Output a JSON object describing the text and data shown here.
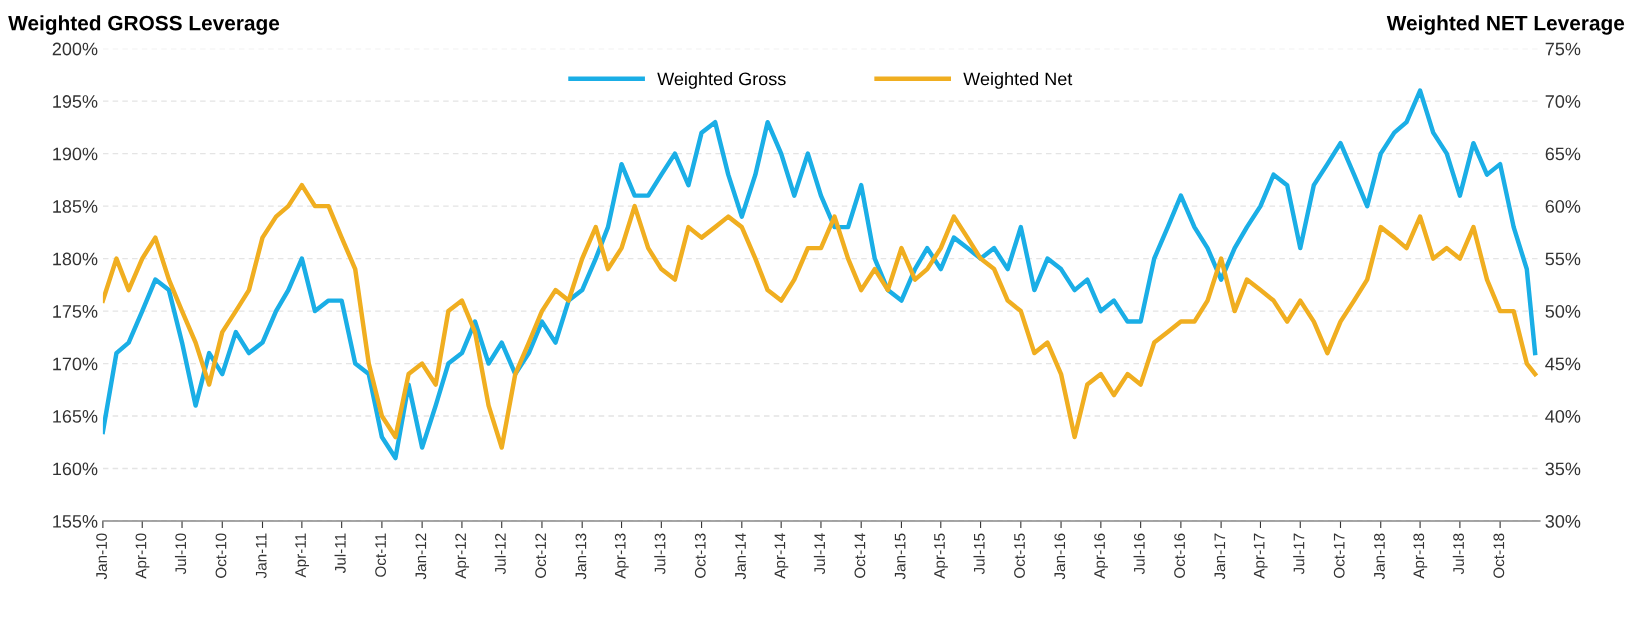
{
  "chart_data": {
    "type": "line",
    "ylabel": "Weighted GROSS Leverage",
    "y2label": "Weighted NET Leverage",
    "x": [
      "2010-01",
      "2010-02",
      "2010-03",
      "2010-04",
      "2010-05",
      "2010-06",
      "2010-07",
      "2010-08",
      "2010-09",
      "2010-10",
      "2010-11",
      "2010-12",
      "2011-01",
      "2011-02",
      "2011-03",
      "2011-04",
      "2011-05",
      "2011-06",
      "2011-07",
      "2011-08",
      "2011-09",
      "2011-10",
      "2011-11",
      "2011-12",
      "2012-01",
      "2012-02",
      "2012-03",
      "2012-04",
      "2012-05",
      "2012-06",
      "2012-07",
      "2012-08",
      "2012-09",
      "2012-10",
      "2012-11",
      "2012-12",
      "2013-01",
      "2013-02",
      "2013-03",
      "2013-04",
      "2013-05",
      "2013-06",
      "2013-07",
      "2013-08",
      "2013-09",
      "2013-10",
      "2013-11",
      "2013-12",
      "2014-01",
      "2014-02",
      "2014-03",
      "2014-04",
      "2014-05",
      "2014-06",
      "2014-07",
      "2014-08",
      "2014-09",
      "2014-10",
      "2014-11",
      "2014-12",
      "2015-01",
      "2015-02",
      "2015-03",
      "2015-04",
      "2015-05",
      "2015-06",
      "2015-07",
      "2015-08",
      "2015-09",
      "2015-10",
      "2015-11",
      "2015-12",
      "2016-01",
      "2016-02",
      "2016-03",
      "2016-04",
      "2016-05",
      "2016-06",
      "2016-07",
      "2016-08",
      "2016-09",
      "2016-10",
      "2016-11",
      "2016-12",
      "2017-01",
      "2017-02",
      "2017-03",
      "2017-04",
      "2017-05",
      "2017-06",
      "2017-07",
      "2017-08",
      "2017-09",
      "2017-10",
      "2017-11",
      "2017-12",
      "2018-01",
      "2018-02",
      "2018-03",
      "2018-04",
      "2018-05",
      "2018-06",
      "2018-07",
      "2018-08",
      "2018-09",
      "2018-10",
      "2018-11",
      "2018-12",
      "2018-12-20"
    ],
    "series": [
      {
        "name": "Weighted Gross",
        "color": "#1aaee6",
        "values": [
          163.5,
          171,
          172,
          175,
          178,
          177,
          172,
          166,
          171,
          169,
          173,
          171,
          172,
          175,
          177,
          180,
          175,
          176,
          176,
          170,
          169,
          163,
          161,
          168,
          162,
          166,
          170,
          171,
          174,
          170,
          172,
          169,
          171,
          174,
          172,
          176,
          177,
          180,
          183,
          189,
          186,
          186,
          188,
          190,
          187,
          192,
          193,
          188,
          184,
          188,
          193,
          190,
          186,
          190,
          186,
          183,
          183,
          187,
          180,
          177,
          176,
          179,
          181,
          179,
          182,
          181,
          180,
          181,
          179,
          183,
          177,
          180,
          179,
          177,
          178,
          175,
          176,
          174,
          174,
          180,
          183,
          186,
          183,
          181,
          178,
          181,
          183,
          185,
          188,
          187,
          181,
          187,
          189,
          191,
          188,
          185,
          190,
          192,
          193,
          196,
          192,
          190,
          186,
          191,
          188,
          189,
          183,
          179,
          171
        ]
      },
      {
        "name": "Weighted Net",
        "color": "#f0ae20",
        "axis": "y2",
        "values": [
          51,
          55,
          52,
          55,
          57,
          53,
          50,
          47,
          43,
          48,
          50,
          52,
          57,
          59,
          60,
          62,
          60,
          60,
          57,
          54,
          45,
          40,
          38,
          44,
          45,
          43,
          50,
          51,
          48,
          41,
          37,
          44,
          47,
          50,
          52,
          51,
          55,
          58,
          54,
          56,
          60,
          56,
          54,
          53,
          58,
          57,
          58,
          59,
          58,
          55,
          52,
          51,
          53,
          56,
          56,
          59,
          55,
          52,
          54,
          52,
          56,
          53,
          54,
          56,
          59,
          57,
          55,
          54,
          51,
          50,
          46,
          47,
          44,
          38,
          43,
          44,
          42,
          44,
          43,
          47,
          48,
          49,
          49,
          51,
          55,
          50,
          53,
          52,
          51,
          49,
          51,
          49,
          46,
          49,
          51,
          53,
          58,
          57,
          56,
          59,
          55,
          56,
          55,
          58,
          53,
          50,
          50,
          45,
          44
        ]
      }
    ],
    "xlim": [
      "2010-01-01",
      "2018-12-31"
    ],
    "xticks": [
      {
        "value": "2010-01",
        "label": "Jan-10"
      },
      {
        "value": "2010-04",
        "label": "Apr-10"
      },
      {
        "value": "2010-07",
        "label": "Jul-10"
      },
      {
        "value": "2010-10",
        "label": "Oct-10"
      },
      {
        "value": "2011-01",
        "label": "Jan-11"
      },
      {
        "value": "2011-04",
        "label": "Apr-11"
      },
      {
        "value": "2011-07",
        "label": "Jul-11"
      },
      {
        "value": "2011-10",
        "label": "Oct-11"
      },
      {
        "value": "2012-01",
        "label": "Jan-12"
      },
      {
        "value": "2012-04",
        "label": "Apr-12"
      },
      {
        "value": "2012-07",
        "label": "Jul-12"
      },
      {
        "value": "2012-10",
        "label": "Oct-12"
      },
      {
        "value": "2013-01",
        "label": "Jan-13"
      },
      {
        "value": "2013-04",
        "label": "Apr-13"
      },
      {
        "value": "2013-07",
        "label": "Jul-13"
      },
      {
        "value": "2013-10",
        "label": "Oct-13"
      },
      {
        "value": "2014-01",
        "label": "Jan-14"
      },
      {
        "value": "2014-04",
        "label": "Apr-14"
      },
      {
        "value": "2014-07",
        "label": "Jul-14"
      },
      {
        "value": "2014-10",
        "label": "Oct-14"
      },
      {
        "value": "2015-01",
        "label": "Jan-15"
      },
      {
        "value": "2015-04",
        "label": "Apr-15"
      },
      {
        "value": "2015-07",
        "label": "Jul-15"
      },
      {
        "value": "2015-10",
        "label": "Oct-15"
      },
      {
        "value": "2016-01",
        "label": "Jan-16"
      },
      {
        "value": "2016-04",
        "label": "Apr-16"
      },
      {
        "value": "2016-07",
        "label": "Jul-16"
      },
      {
        "value": "2016-10",
        "label": "Oct-16"
      },
      {
        "value": "2017-01",
        "label": "Jan-17"
      },
      {
        "value": "2017-04",
        "label": "Apr-17"
      },
      {
        "value": "2017-07",
        "label": "Jul-17"
      },
      {
        "value": "2017-10",
        "label": "Oct-17"
      },
      {
        "value": "2018-01",
        "label": "Jan-18"
      },
      {
        "value": "2018-04",
        "label": "Apr-18"
      },
      {
        "value": "2018-07",
        "label": "Jul-18"
      },
      {
        "value": "2018-10",
        "label": "Oct-18"
      }
    ],
    "ylim": [
      155,
      200
    ],
    "yticks": [
      {
        "value": 155,
        "label": "155%"
      },
      {
        "value": 160,
        "label": "160%"
      },
      {
        "value": 165,
        "label": "165%"
      },
      {
        "value": 170,
        "label": "170%"
      },
      {
        "value": 175,
        "label": "175%"
      },
      {
        "value": 180,
        "label": "180%"
      },
      {
        "value": 185,
        "label": "185%"
      },
      {
        "value": 190,
        "label": "190%"
      },
      {
        "value": 195,
        "label": "195%"
      },
      {
        "value": 200,
        "label": "200%"
      }
    ],
    "y2lim": [
      30,
      75
    ],
    "y2ticks": [
      {
        "value": 30,
        "label": "30%"
      },
      {
        "value": 35,
        "label": "35%"
      },
      {
        "value": 40,
        "label": "40%"
      },
      {
        "value": 45,
        "label": "45%"
      },
      {
        "value": 50,
        "label": "50%"
      },
      {
        "value": 55,
        "label": "55%"
      },
      {
        "value": 60,
        "label": "60%"
      },
      {
        "value": 65,
        "label": "65%"
      },
      {
        "value": 70,
        "label": "70%"
      },
      {
        "value": 75,
        "label": "75%"
      }
    ],
    "grid": "y",
    "legend": "top",
    "marker": "none",
    "line_style": "solid"
  }
}
